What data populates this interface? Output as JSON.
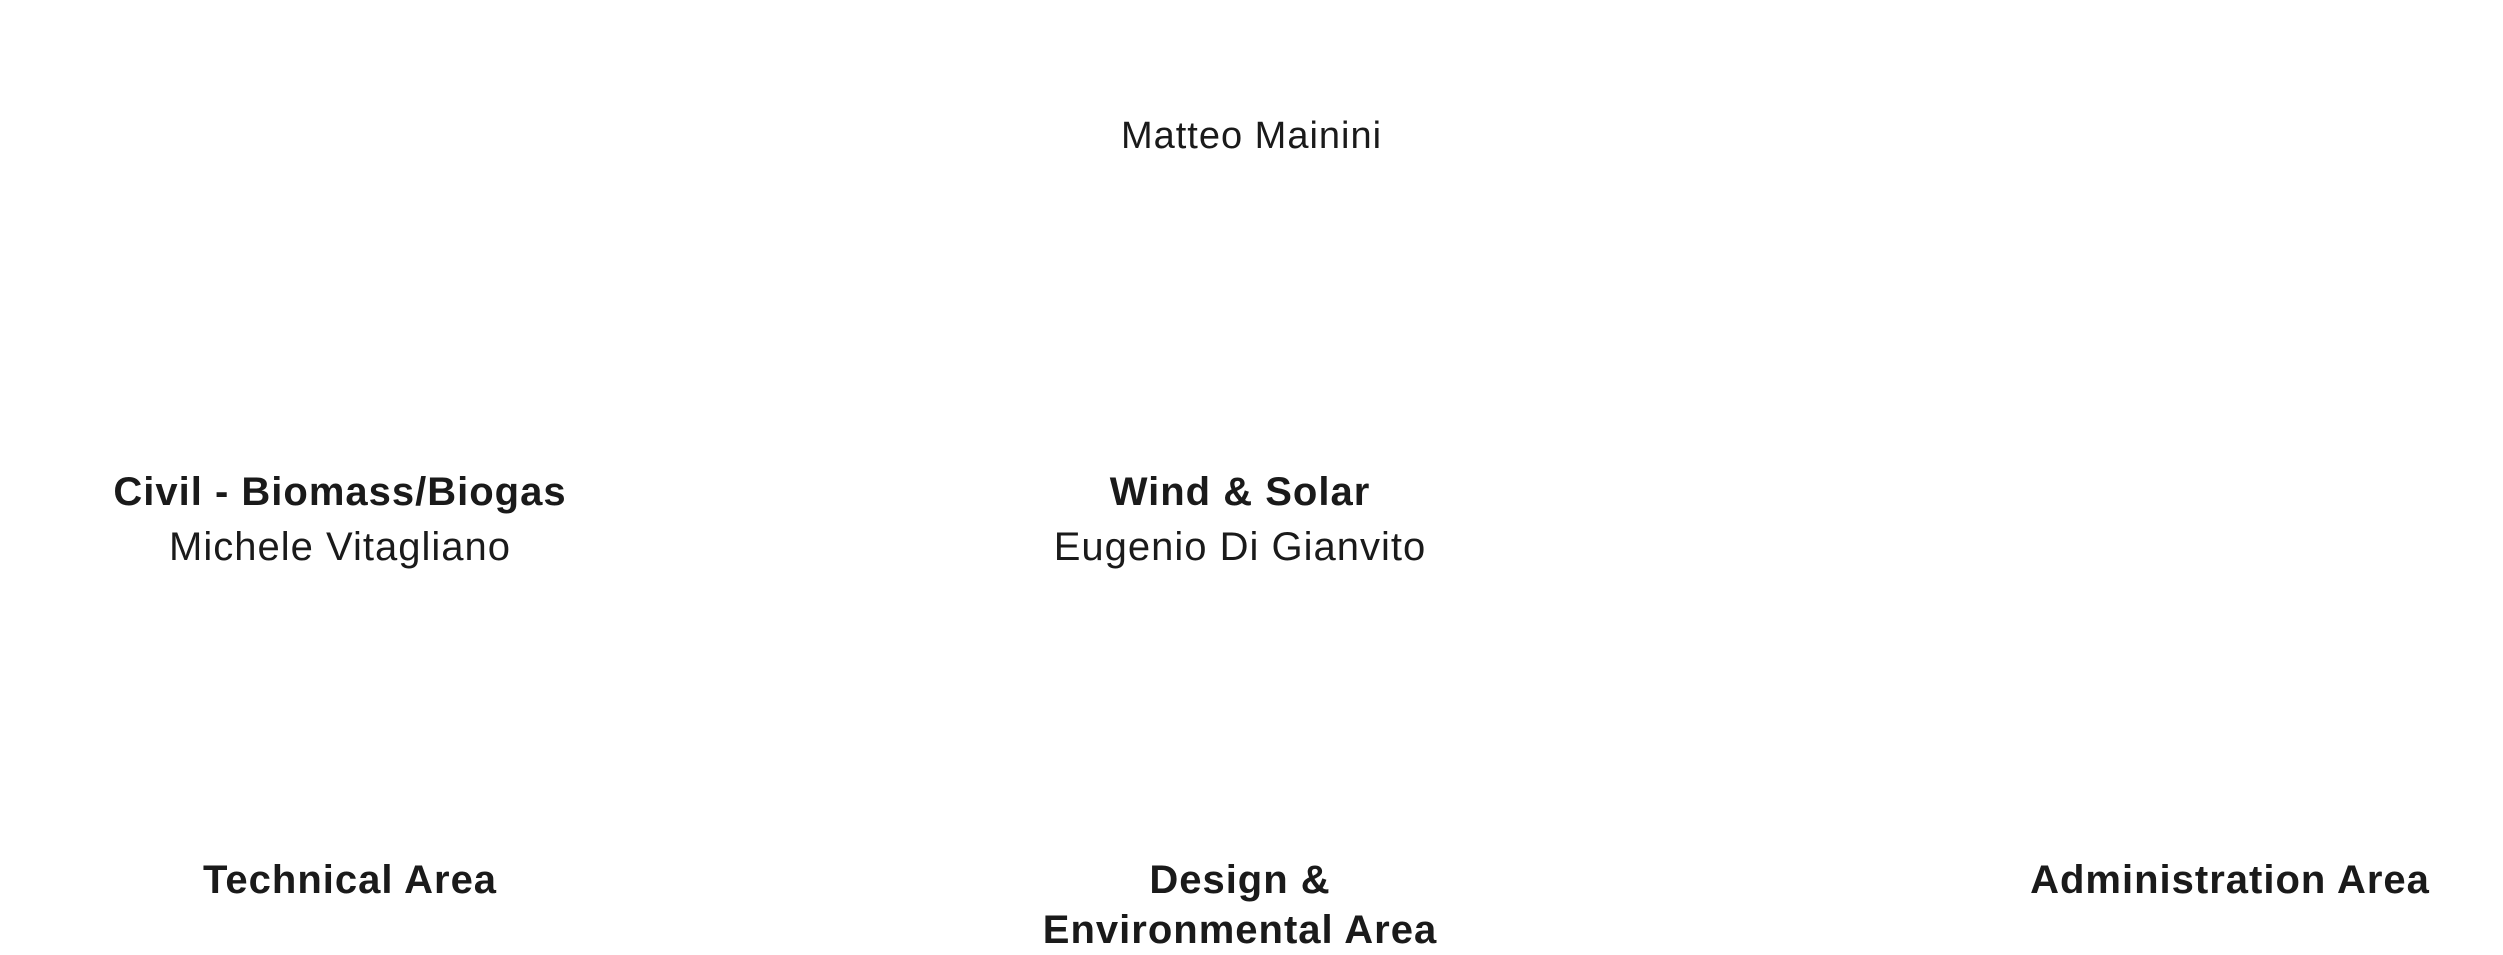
{
  "org": {
    "top": {
      "name": "Matteo Mainini"
    },
    "mid": {
      "left": {
        "title": "Civil - Biomass/Biogas",
        "person": "Michele Vitagliano"
      },
      "center": {
        "title": "Wind & Solar",
        "person": "Eugenio Di Gianvito"
      }
    },
    "bottom": {
      "left": {
        "title": "Technical Area"
      },
      "center": {
        "title_line1": "Design &",
        "title_line2": "Environmental Area"
      },
      "right": {
        "title": "Administration Area"
      }
    }
  },
  "style": {
    "background_color": "#ffffff",
    "text_color": "#1a1a1a",
    "top_fontsize": 38,
    "top_fontweight": 400,
    "mid_title_fontsize": 40,
    "mid_title_fontweight": 700,
    "mid_subtitle_fontsize": 40,
    "mid_subtitle_fontweight": 400,
    "bottom_title_fontsize": 40,
    "bottom_title_fontweight": 700,
    "letter_spacing": 1
  }
}
